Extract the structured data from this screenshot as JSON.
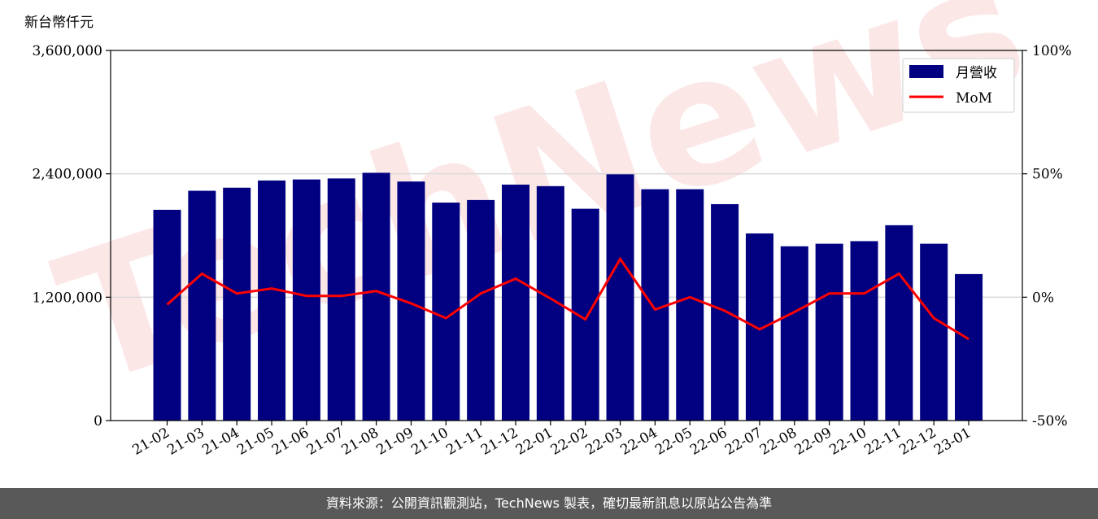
{
  "chart_data": {
    "type": "bar",
    "y_unit": "新台幣仟元",
    "categories": [
      "21-02",
      "21-03",
      "21-04",
      "21-05",
      "21-06",
      "21-07",
      "21-08",
      "21-09",
      "21-10",
      "21-11",
      "21-12",
      "22-01",
      "22-02",
      "22-03",
      "22-04",
      "22-05",
      "22-06",
      "22-07",
      "22-08",
      "22-09",
      "22-10",
      "22-11",
      "22-12",
      "23-01"
    ],
    "series": [
      {
        "name": "月營收",
        "type": "bar",
        "axis": "left",
        "color": "#000080",
        "values": [
          2050000,
          2235000,
          2265000,
          2335000,
          2345000,
          2355000,
          2410000,
          2325000,
          2120000,
          2145000,
          2295000,
          2280000,
          2060000,
          2395000,
          2250000,
          2250000,
          2105000,
          1820000,
          1695000,
          1720000,
          1745000,
          1900000,
          1720000,
          1425000
        ]
      },
      {
        "name": "MoM",
        "type": "line",
        "axis": "right",
        "color": "#ff0000",
        "values": [
          -3,
          9.5,
          1.5,
          3.5,
          0.5,
          0.5,
          2.5,
          -2.5,
          -8.5,
          1.5,
          7.5,
          -0.5,
          -9,
          15.5,
          -5,
          0,
          -5.5,
          -13,
          -6,
          1.5,
          1.5,
          9.5,
          -8.5,
          -17
        ]
      }
    ],
    "y_left": {
      "min": 0,
      "max": 3600000,
      "ticks": [
        "0",
        "1,200,000",
        "2,400,000",
        "3,600,000"
      ],
      "tick_values": [
        0,
        1200000,
        2400000,
        3600000
      ]
    },
    "y_right": {
      "min": -50,
      "max": 100,
      "ticks": [
        "-50%",
        "0%",
        "50%",
        "100%"
      ],
      "tick_values": [
        -50,
        0,
        50,
        100
      ]
    },
    "grid": "horizontal",
    "legend": {
      "position": "top-right",
      "items": [
        {
          "label": "月營收",
          "kind": "bar",
          "color": "#000080"
        },
        {
          "label": "MoM",
          "kind": "line",
          "color": "#ff0000"
        }
      ]
    },
    "watermark": "TechNews"
  },
  "footer": {
    "text": "資料來源：公開資訊觀測站，TechNews 製表，確切最新訊息以原站公告為準"
  }
}
